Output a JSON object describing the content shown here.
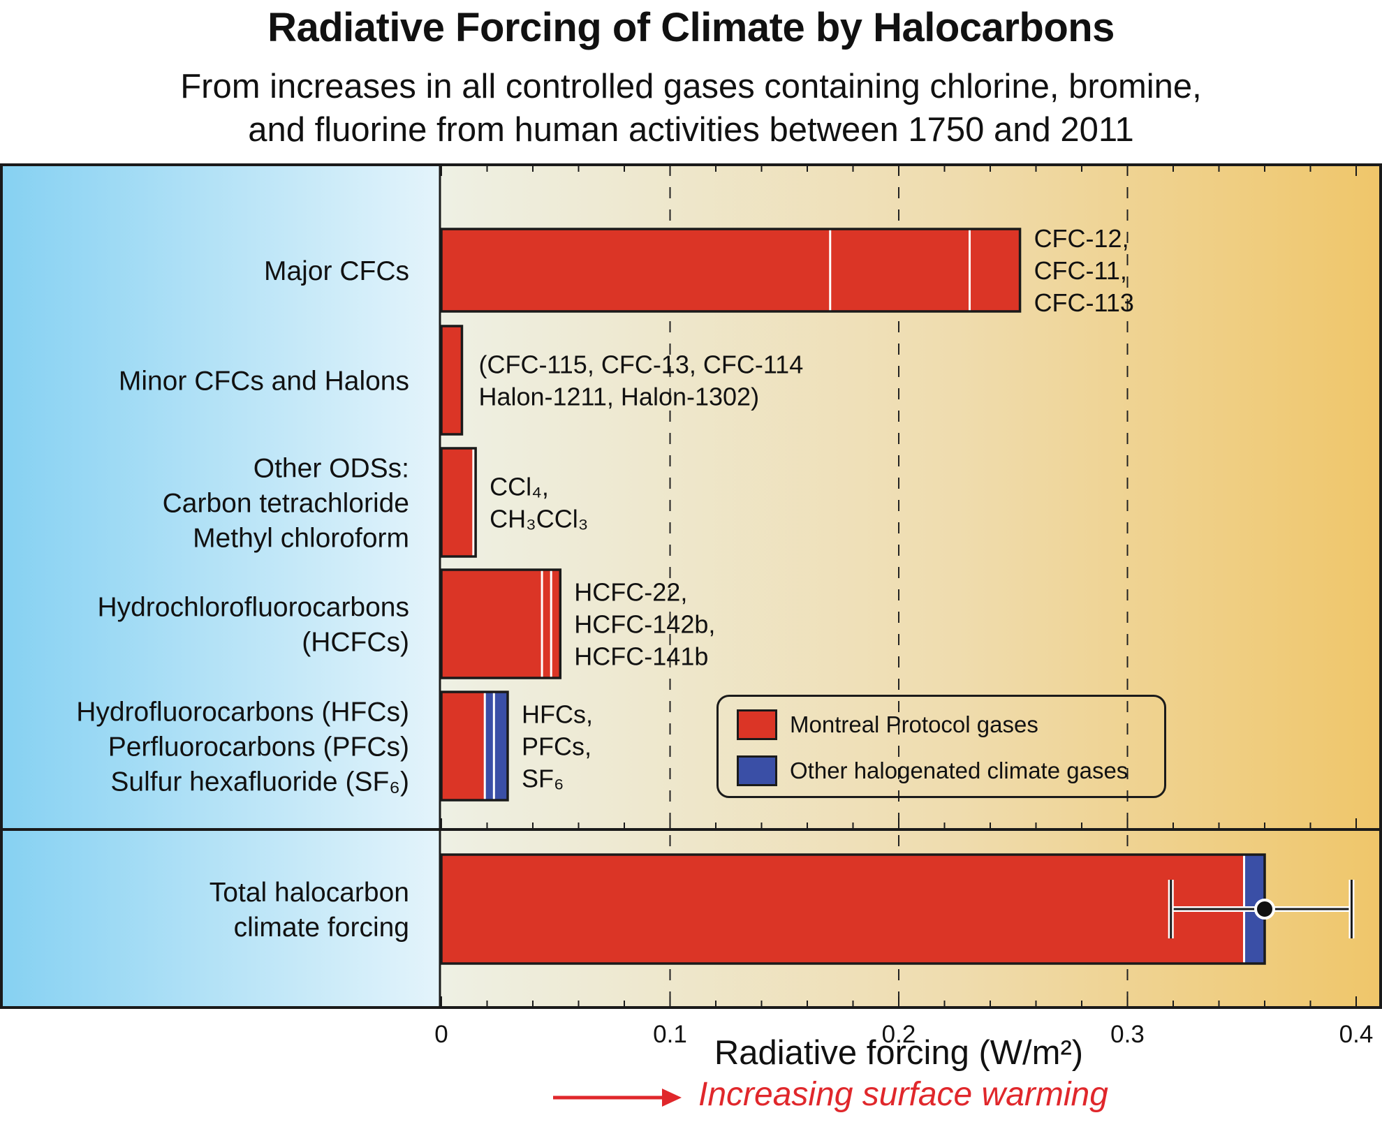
{
  "title": "Radiative Forcing of Climate by Halocarbons",
  "subtitle_lines": [
    "From increases in all controlled gases containing chlorine, bromine,",
    "and fluorine from human activities between 1750 and 2011"
  ],
  "colors": {
    "montreal": "#db3526",
    "other": "#3a4fa6",
    "left_panel_outer": "#86d1f2",
    "left_panel_inner": "#e4f4fb",
    "plot_left": "#eef0e4",
    "plot_right": "#efc66a",
    "warming_text": "#e0272b"
  },
  "chart_data": {
    "type": "bar",
    "orientation": "horizontal",
    "stacked": true,
    "xlabel": "Radiative forcing (W/m²)",
    "xlim": [
      0,
      0.4
    ],
    "xticks": [
      "0",
      "0.1",
      "0.2",
      "0.3",
      "0.4"
    ],
    "xtick_values": [
      0,
      0.1,
      0.2,
      0.3,
      0.4
    ],
    "minor_tick_step": 0.02,
    "grid": "dashed vertical lines at 0.1, 0.2, 0.3",
    "legend_position": "center-right",
    "categories": [
      {
        "label_lines": [
          "Major CFCs"
        ],
        "segments": [
          {
            "value": 0.17,
            "series": "montreal"
          },
          {
            "value": 0.061,
            "series": "montreal"
          },
          {
            "value": 0.022,
            "series": "montreal"
          }
        ],
        "annotation_lines": [
          "CFC-12,",
          "CFC-11,",
          "CFC-113"
        ]
      },
      {
        "label_lines": [
          "Minor CFCs and Halons"
        ],
        "segments": [
          {
            "value": 0.009,
            "series": "montreal"
          }
        ],
        "annotation_lines": [
          "(CFC-115, CFC-13, CFC-114",
          "Halon-1211, Halon-1302)"
        ]
      },
      {
        "label_lines": [
          "Other ODSs:",
          "Carbon tetrachloride",
          "Methyl chloroform"
        ],
        "segments": [
          {
            "value": 0.014,
            "series": "montreal"
          },
          {
            "value": 0.001,
            "series": "montreal"
          }
        ],
        "annotation_lines": [
          "CCl₄,",
          "CH₃CCl₃"
        ]
      },
      {
        "label_lines": [
          "Hydrochlorofluorocarbons",
          "(HCFCs)"
        ],
        "segments": [
          {
            "value": 0.044,
            "series": "montreal"
          },
          {
            "value": 0.004,
            "series": "montreal"
          },
          {
            "value": 0.004,
            "series": "montreal"
          }
        ],
        "annotation_lines": [
          "HCFC-22,",
          "HCFC-142b,",
          "HCFC-141b"
        ]
      },
      {
        "label_lines": [
          "Hydrofluorocarbons (HFCs)",
          "Perfluorocarbons (PFCs)",
          "Sulfur hexafluoride (SF₆)"
        ],
        "segments": [
          {
            "value": 0.019,
            "series": "montreal"
          },
          {
            "value": 0.004,
            "series": "other"
          },
          {
            "value": 0.006,
            "series": "other"
          }
        ],
        "annotation_lines": [
          "HFCs,",
          "PFCs,",
          "SF₆"
        ]
      }
    ],
    "total": {
      "label_lines": [
        "Total halocarbon",
        "climate forcing"
      ],
      "segments": [
        {
          "value": 0.351,
          "series": "montreal"
        },
        {
          "value": 0.009,
          "series": "other"
        }
      ],
      "point": 0.36,
      "error_range": [
        0.319,
        0.398
      ]
    },
    "series": [
      {
        "id": "montreal",
        "name": "Montreal Protocol gases"
      },
      {
        "id": "other",
        "name": "Other halogenated climate gases"
      }
    ]
  },
  "warming_label": "Increasing surface warming"
}
